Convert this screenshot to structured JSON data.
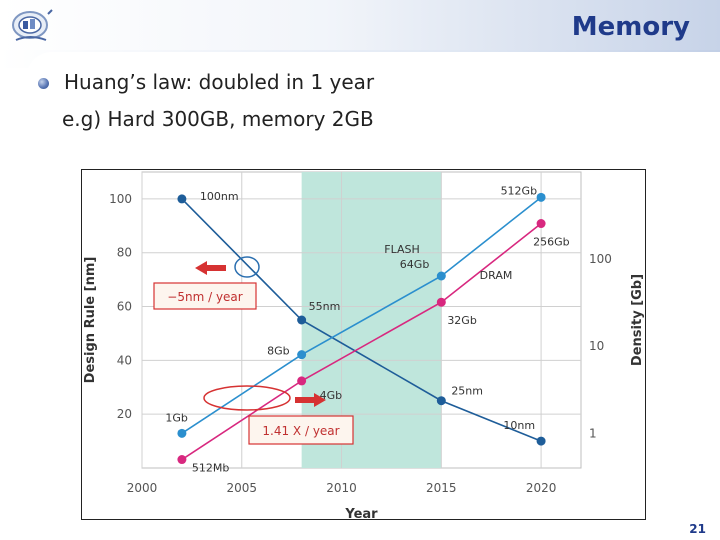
{
  "slide": {
    "title": "Memory",
    "bullet_1": "Huang’s law: doubled in 1 year",
    "bullet_2": "e.g) Hard 300GB, memory 2GB",
    "page_number": "21"
  },
  "colors": {
    "accent": "#1f3a8a",
    "design_rule_line": "#1e5d99",
    "flash_line": "#2b8fce",
    "dram_line": "#d8287f",
    "highlight_band": "#bfe6dc",
    "callout_red": "#d63232"
  },
  "chart_data": {
    "type": "line",
    "title": "",
    "xlabel": "Year",
    "ylabel_left": "Design Rule [nm]",
    "ylabel_right": "Density [Gb]",
    "x_range": [
      2000,
      2022
    ],
    "y_left_range": [
      0,
      110
    ],
    "y_right_log_range": [
      0.4,
      1000
    ],
    "x_ticks": [
      2000,
      2005,
      2010,
      2015,
      2020
    ],
    "y_left_ticks": [
      20,
      40,
      60,
      80,
      100
    ],
    "y_right_ticks": [
      1,
      10,
      100
    ],
    "highlight_band": [
      2008,
      2015
    ],
    "series": [
      {
        "name": "Design Rule",
        "axis": "left",
        "x": [
          2002,
          2008,
          2015,
          2020
        ],
        "y": [
          100,
          55,
          25,
          10
        ],
        "labels": [
          "100nm",
          "55nm",
          "25nm",
          "10nm"
        ]
      },
      {
        "name": "FLASH",
        "axis": "right",
        "x": [
          2002,
          2008,
          2015,
          2020
        ],
        "y": [
          1,
          8,
          64,
          512
        ],
        "labels": [
          "1Gb",
          "8Gb",
          "64Gb",
          "512Gb"
        ]
      },
      {
        "name": "DRAM",
        "axis": "right",
        "x": [
          2002,
          2008,
          2015,
          2020
        ],
        "y": [
          0.5,
          4,
          32,
          256
        ],
        "labels": [
          "512Mb",
          "4Gb",
          "32Gb",
          "256Gb"
        ]
      }
    ],
    "annotations": {
      "flash_name": "FLASH",
      "dram_name": "DRAM",
      "design_rule_trend": "−5nm / year",
      "density_trend": "1.41 X / year"
    }
  }
}
